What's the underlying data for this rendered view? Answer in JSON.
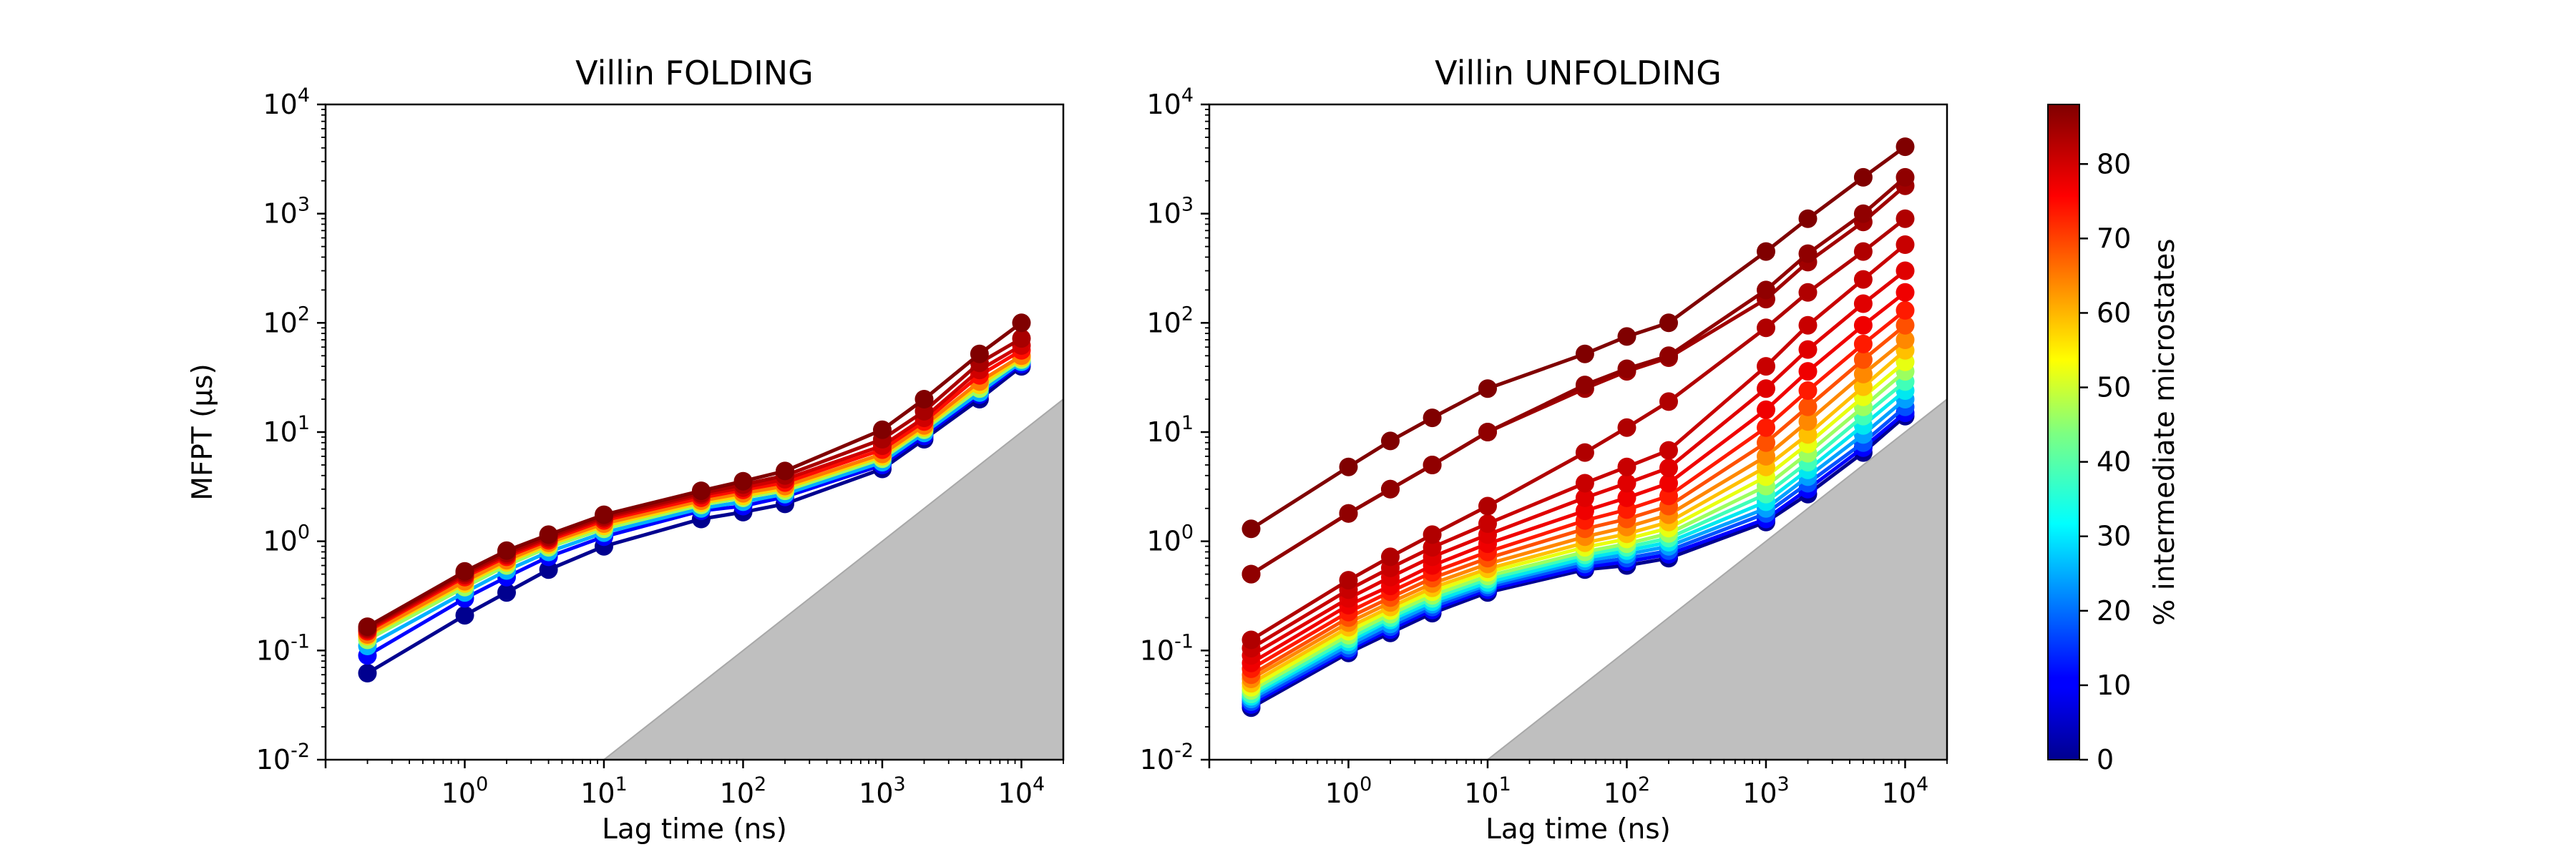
{
  "chart_data": [
    {
      "type": "line",
      "title": "Villin FOLDING",
      "xlabel": "Lag time (ns)",
      "ylabel": "MFPT (µs)",
      "xscale": "log",
      "yscale": "log",
      "xlim": [
        0.1,
        20000
      ],
      "ylim": [
        0.01,
        10000
      ],
      "x_ticks": [
        "10^0",
        "10^1",
        "10^2",
        "10^3",
        "10^4"
      ],
      "y_ticks": [
        "10^-2",
        "10^-1",
        "10^0",
        "10^1",
        "10^2",
        "10^3",
        "10^4"
      ],
      "x": [
        0.2,
        1,
        2,
        4,
        10,
        50,
        100,
        200,
        1000,
        2000,
        5000,
        10000
      ],
      "series": [
        {
          "percent": 0,
          "color": "#00008f",
          "values": [
            0.062,
            0.21,
            0.34,
            0.55,
            0.9,
            1.6,
            1.85,
            2.2,
            4.6,
            8.6,
            20,
            40
          ]
        },
        {
          "percent": 10,
          "color": "#0000ff",
          "values": [
            0.09,
            0.3,
            0.47,
            0.72,
            1.1,
            1.9,
            2.1,
            2.55,
            5.0,
            9.2,
            22,
            42
          ]
        },
        {
          "percent": 25,
          "color": "#00b0ff",
          "values": [
            0.11,
            0.34,
            0.54,
            0.8,
            1.2,
            2.0,
            2.3,
            2.7,
            5.3,
            9.8,
            23,
            44
          ]
        },
        {
          "percent": 45,
          "color": "#9cff5f",
          "values": [
            0.125,
            0.38,
            0.6,
            0.88,
            1.3,
            2.15,
            2.5,
            2.9,
            5.7,
            10.5,
            25,
            46
          ]
        },
        {
          "percent": 55,
          "color": "#ffd500",
          "values": [
            0.135,
            0.41,
            0.64,
            0.93,
            1.38,
            2.25,
            2.6,
            3.05,
            6.0,
            11.0,
            27,
            48
          ]
        },
        {
          "percent": 65,
          "color": "#ff7a00",
          "values": [
            0.14,
            0.43,
            0.67,
            0.97,
            1.45,
            2.35,
            2.75,
            3.2,
            6.3,
            11.5,
            29,
            50
          ]
        },
        {
          "percent": 75,
          "color": "#ff0d00",
          "values": [
            0.15,
            0.47,
            0.72,
            1.02,
            1.55,
            2.5,
            2.95,
            3.45,
            6.9,
            12.5,
            33,
            56
          ]
        },
        {
          "percent": 80,
          "color": "#d00000",
          "values": [
            0.155,
            0.49,
            0.75,
            1.06,
            1.62,
            2.65,
            3.1,
            3.7,
            7.5,
            13.5,
            37,
            62
          ]
        },
        {
          "percent": 84,
          "color": "#a80000",
          "values": [
            0.16,
            0.51,
            0.78,
            1.1,
            1.68,
            2.75,
            3.3,
            4.0,
            8.6,
            15.5,
            43,
            72
          ]
        },
        {
          "percent": 88,
          "color": "#800000",
          "values": [
            0.165,
            0.53,
            0.82,
            1.15,
            1.75,
            2.9,
            3.55,
            4.4,
            10.5,
            20,
            52,
            100
          ]
        }
      ]
    },
    {
      "type": "line",
      "title": "Villin UNFOLDING",
      "xlabel": "Lag time (ns)",
      "ylabel": "",
      "xscale": "log",
      "yscale": "log",
      "xlim": [
        0.1,
        20000
      ],
      "ylim": [
        0.01,
        10000
      ],
      "x_ticks": [
        "10^0",
        "10^1",
        "10^2",
        "10^3",
        "10^4"
      ],
      "y_ticks": [
        "10^-2",
        "10^-1",
        "10^0",
        "10^1",
        "10^2",
        "10^3",
        "10^4"
      ],
      "x": [
        0.2,
        1,
        2,
        4,
        10,
        50,
        100,
        200,
        1000,
        2000,
        5000,
        10000
      ],
      "series": [
        {
          "percent": 0,
          "color": "#00008f",
          "values": [
            0.03,
            0.095,
            0.145,
            0.22,
            0.34,
            0.55,
            0.6,
            0.7,
            1.5,
            2.7,
            6.5,
            14
          ]
        },
        {
          "percent": 8,
          "color": "#0000ff",
          "values": [
            0.032,
            0.1,
            0.155,
            0.235,
            0.36,
            0.58,
            0.65,
            0.76,
            1.6,
            3.0,
            7.2,
            15
          ]
        },
        {
          "percent": 16,
          "color": "#0050ff",
          "values": [
            0.034,
            0.105,
            0.165,
            0.25,
            0.38,
            0.62,
            0.7,
            0.82,
            1.8,
            3.4,
            8.0,
            17
          ]
        },
        {
          "percent": 24,
          "color": "#00a0ff",
          "values": [
            0.036,
            0.112,
            0.175,
            0.265,
            0.4,
            0.66,
            0.76,
            0.9,
            2.0,
            3.9,
            9.5,
            20
          ]
        },
        {
          "percent": 32,
          "color": "#00e8f0",
          "values": [
            0.038,
            0.12,
            0.19,
            0.28,
            0.42,
            0.7,
            0.82,
            0.98,
            2.3,
            4.5,
            11.5,
            24
          ]
        },
        {
          "percent": 40,
          "color": "#40ffb8",
          "values": [
            0.04,
            0.128,
            0.2,
            0.3,
            0.45,
            0.75,
            0.88,
            1.07,
            2.7,
            5.3,
            14,
            29
          ]
        },
        {
          "percent": 48,
          "color": "#9cff5f",
          "values": [
            0.043,
            0.138,
            0.215,
            0.32,
            0.48,
            0.8,
            0.95,
            1.18,
            3.2,
            6.4,
            17,
            36
          ]
        },
        {
          "percent": 56,
          "color": "#e8ff10",
          "values": [
            0.046,
            0.15,
            0.232,
            0.345,
            0.52,
            0.88,
            1.05,
            1.32,
            3.9,
            7.8,
            21,
            44
          ]
        },
        {
          "percent": 62,
          "color": "#ffc000",
          "values": [
            0.05,
            0.163,
            0.25,
            0.375,
            0.56,
            0.97,
            1.17,
            1.5,
            4.8,
            9.5,
            26,
            56
          ]
        },
        {
          "percent": 68,
          "color": "#ff8800",
          "values": [
            0.055,
            0.18,
            0.275,
            0.41,
            0.62,
            1.1,
            1.35,
            1.75,
            6.0,
            12.5,
            34,
            70
          ]
        },
        {
          "percent": 72,
          "color": "#ff5000",
          "values": [
            0.06,
            0.2,
            0.305,
            0.46,
            0.7,
            1.3,
            1.6,
            2.1,
            8.0,
            17,
            46,
            95
          ]
        },
        {
          "percent": 76,
          "color": "#ff1a00",
          "values": [
            0.068,
            0.225,
            0.345,
            0.52,
            0.8,
            1.55,
            1.95,
            2.6,
            11,
            24,
            64,
            130
          ]
        },
        {
          "percent": 79,
          "color": "#f00000",
          "values": [
            0.077,
            0.26,
            0.39,
            0.6,
            0.95,
            1.9,
            2.5,
            3.4,
            16,
            36,
            95,
            190
          ]
        },
        {
          "percent": 82,
          "color": "#e00000",
          "values": [
            0.09,
            0.3,
            0.47,
            0.72,
            1.15,
            2.5,
            3.4,
            4.7,
            25,
            57,
            150,
            300
          ]
        },
        {
          "percent": 84,
          "color": "#c80000",
          "values": [
            0.105,
            0.36,
            0.57,
            0.88,
            1.45,
            3.4,
            4.8,
            6.8,
            40,
            95,
            250,
            520
          ]
        },
        {
          "percent": 86,
          "color": "#b00000",
          "values": [
            0.125,
            0.44,
            0.72,
            1.15,
            2.1,
            6.5,
            11,
            19,
            90,
            190,
            450,
            900
          ]
        },
        {
          "percent": 87,
          "color": "#a00000",
          "values": [
            0.5,
            1.8,
            3.0,
            5.0,
            10,
            25,
            36,
            48,
            165,
            360,
            840,
            1800
          ]
        },
        {
          "percent": 87.5,
          "color": "#900000",
          "values": [
            0.5,
            1.8,
            3.0,
            5.0,
            10,
            27,
            38,
            50,
            200,
            430,
            1000,
            2150
          ]
        },
        {
          "percent": 88,
          "color": "#800000",
          "values": [
            1.3,
            4.8,
            8.3,
            13.5,
            25,
            52,
            75,
            100,
            450,
            900,
            2150,
            4100
          ]
        }
      ]
    }
  ],
  "colorbar": {
    "label": "% intermediate microstates",
    "ticks": [
      "0",
      "10",
      "20",
      "30",
      "40",
      "50",
      "60",
      "70",
      "80"
    ],
    "range": [
      0,
      88
    ],
    "colormap": "jet"
  }
}
